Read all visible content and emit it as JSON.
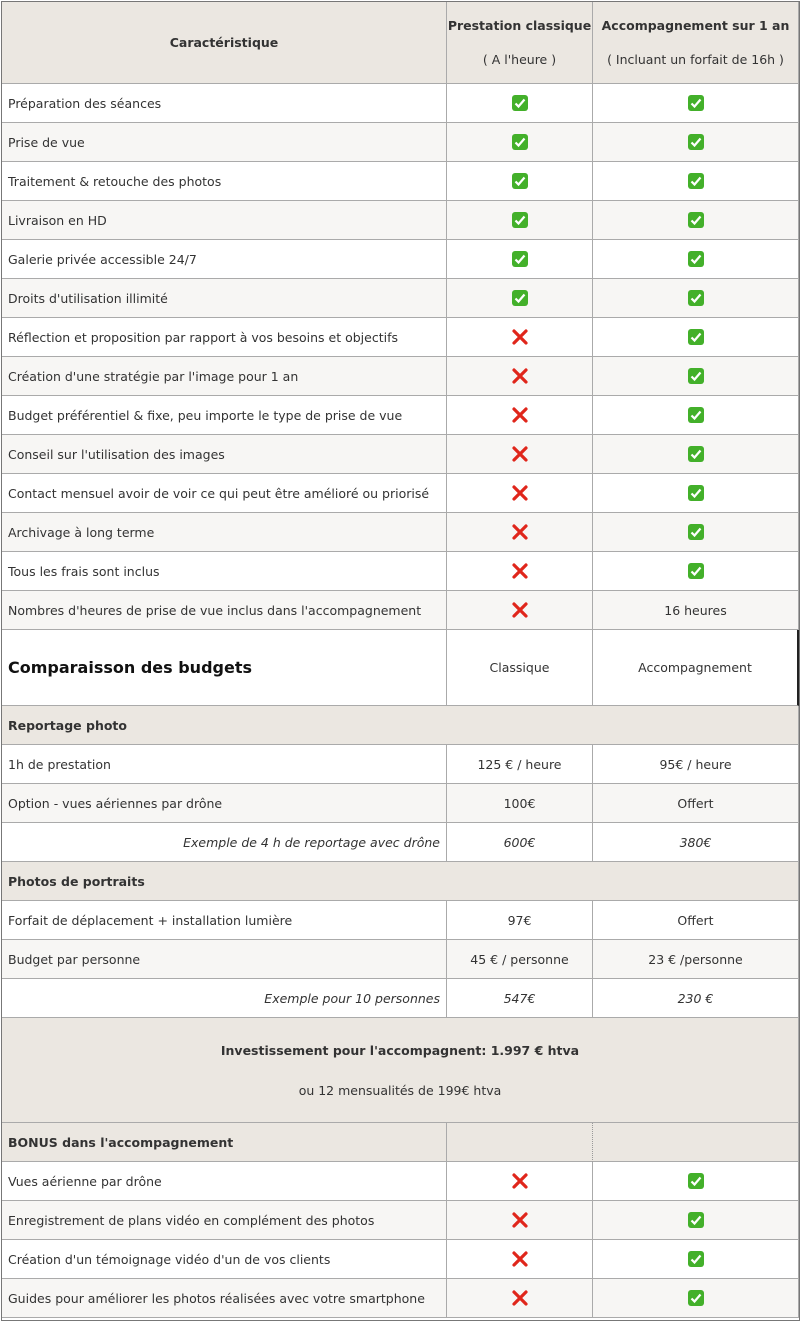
{
  "header": {
    "feature": "Caractéristique",
    "classic": {
      "title": "Prestation classique",
      "subtitle": "( A l'heure )"
    },
    "accompaniment": {
      "title": "Accompagnement sur 1 an",
      "subtitle": "( Incluant un forfait de 16h )"
    }
  },
  "features": [
    {
      "label": "Préparation des séances",
      "classic": true,
      "accompaniment": true
    },
    {
      "label": "Prise de vue",
      "classic": true,
      "accompaniment": true
    },
    {
      "label": "Traitement & retouche des photos",
      "classic": true,
      "accompaniment": true
    },
    {
      "label": "Livraison en HD",
      "classic": true,
      "accompaniment": true
    },
    {
      "label": "Galerie privée accessible 24/7",
      "classic": true,
      "accompaniment": true
    },
    {
      "label": "Droits d'utilisation illimité",
      "classic": true,
      "accompaniment": true
    },
    {
      "label": "Réflection et proposition par rapport à vos besoins et objectifs",
      "classic": false,
      "accompaniment": true
    },
    {
      "label": "Création d'une stratégie par l'image pour 1 an",
      "classic": false,
      "accompaniment": true
    },
    {
      "label": "Budget préférentiel & fixe, peu importe le type de prise de vue",
      "classic": false,
      "accompaniment": true
    },
    {
      "label": "Conseil sur l'utilisation des images",
      "classic": false,
      "accompaniment": true
    },
    {
      "label": "Contact mensuel avoir de voir ce qui peut être amélioré ou priorisé",
      "classic": false,
      "accompaniment": true
    },
    {
      "label": "Archivage à long terme",
      "classic": false,
      "accompaniment": true
    },
    {
      "label": "Tous les frais sont inclus",
      "classic": false,
      "accompaniment": true
    },
    {
      "label": "Nombres d'heures de prise de vue inclus dans l'accompagnement",
      "classic": false,
      "accompaniment": "16 heures"
    }
  ],
  "budget": {
    "title": "Comparaisson des budgets",
    "classic": "Classique",
    "accompaniment": "Accompagnement"
  },
  "sections": [
    {
      "title": "Reportage photo",
      "rows": [
        {
          "label": "1h de prestation",
          "classic": "125 € / heure",
          "accompaniment": "95€ / heure"
        },
        {
          "label": "Option - vues aériennes par drône",
          "classic": "100€",
          "accompaniment": "Offert"
        }
      ],
      "example": {
        "label": "Exemple de 4 h de reportage  avec drône",
        "classic": "600€",
        "accompaniment": "380€"
      }
    },
    {
      "title": "Photos de portraits",
      "rows": [
        {
          "label": "Forfait de déplacement + installation lumière",
          "classic": "97€",
          "accompaniment": "Offert"
        },
        {
          "label": "Budget par personne",
          "classic": "45 € / personne",
          "accompaniment": "23 € /personne"
        }
      ],
      "example": {
        "label": "Exemple pour 10 personnes",
        "classic": "547€",
        "accompaniment": "230 €"
      }
    }
  ],
  "investment": {
    "line1": "Investissement pour l'accompagnent: 1.997 € htva",
    "line2": "ou 12 mensualités de 199€ htva"
  },
  "bonus": {
    "title": "BONUS dans l'accompagnement",
    "rows": [
      {
        "label": "Vues aérienne par drône",
        "classic": false,
        "accompaniment": true
      },
      {
        "label": "Enregistrement de plans vidéo en complément des photos",
        "classic": false,
        "accompaniment": true
      },
      {
        "label": "Création d'un témoignage vidéo d'un de vos clients",
        "classic": false,
        "accompaniment": true
      },
      {
        "label": "Guides pour améliorer les photos réalisées avec votre smartphone",
        "classic": false,
        "accompaniment": true
      }
    ]
  }
}
